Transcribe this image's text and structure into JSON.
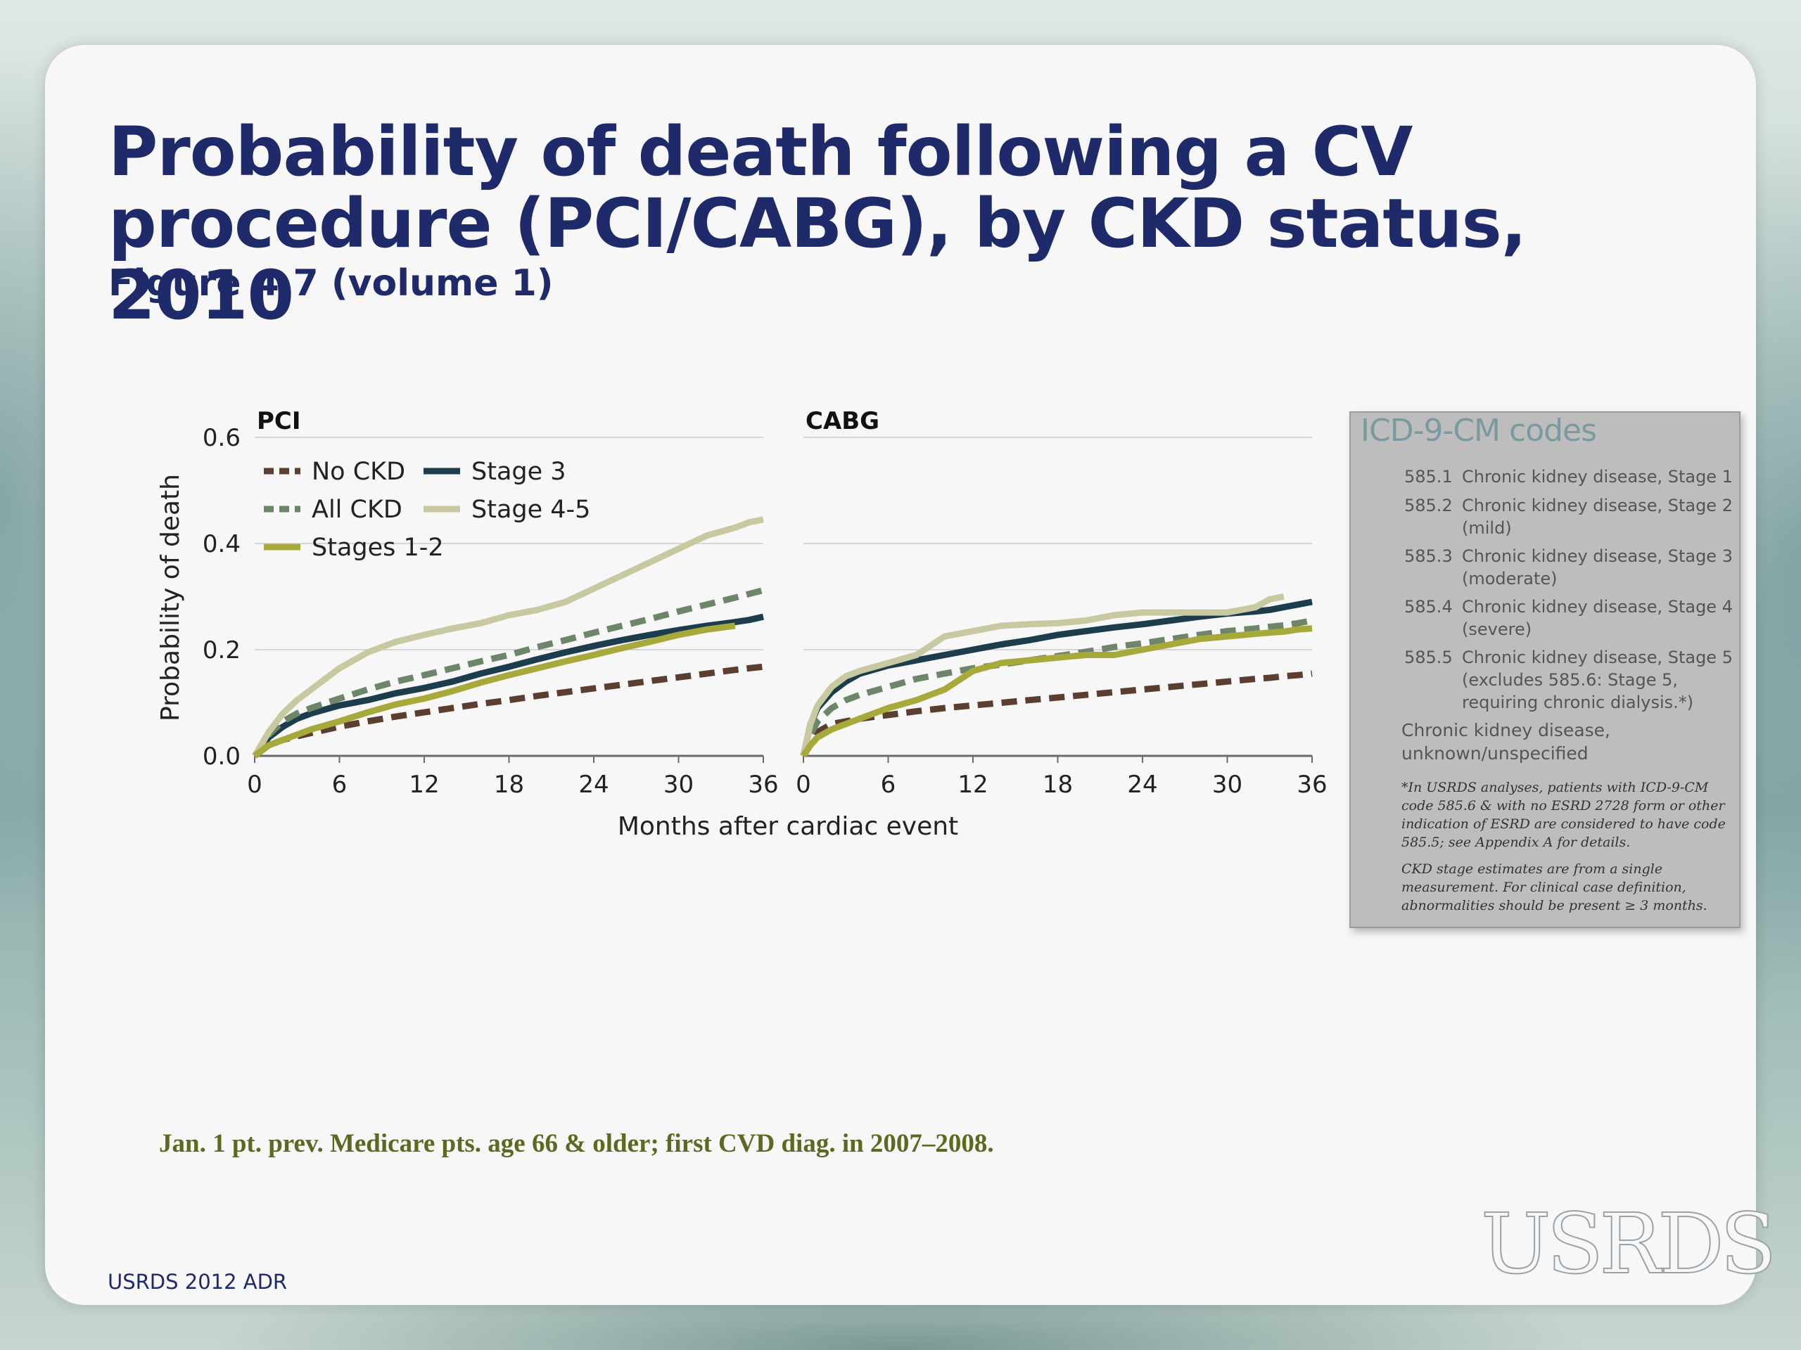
{
  "slide": {
    "title": "Probability of death following a CV procedure (PCI/CABG), by CKD status, 2010",
    "subtitle": "Figure 4.7 (volume 1)",
    "footnote": "Jan. 1 pt. prev. Medicare pts. age 66 & older;  first CVD diag. in 2007–2008.",
    "source": "USRDS 2012 ADR",
    "logo": "USRDS"
  },
  "colors": {
    "title": "#1f2a6b",
    "footnote": "#5a6b21",
    "No CKD": "#5b3e2f",
    "All CKD": "#6d8669",
    "Stages 1-2": "#a7a93a",
    "Stage 3": "#1c3d4d",
    "Stage 4-5": "#c8c9a0"
  },
  "icd": {
    "title": "ICD-9-CM codes",
    "items": [
      {
        "code": "585.1",
        "desc": "Chronic kidney disease, Stage 1"
      },
      {
        "code": "585.2",
        "desc": "Chronic kidney disease, Stage 2 (mild)"
      },
      {
        "code": "585.3",
        "desc": "Chronic kidney disease, Stage 3 (moderate)"
      },
      {
        "code": "585.4",
        "desc": "Chronic kidney disease, Stage 4 (severe)"
      },
      {
        "code": "585.5",
        "desc": "Chronic kidney disease, Stage 5 (excludes 585.6: Stage 5, requiring chronic dialysis.*)"
      }
    ],
    "unknown": "Chronic kidney disease, unknown/unspecified",
    "note1": "*In USRDS analyses, patients with ICD-9-CM code 585.6 & with no ESRD 2728 form or other indication of ESRD are considered to have code 585.5; see Appendix A for details.",
    "note2": "CKD stage estimates are from a single measurement. For clinical case definition, abnormalities should be present ≥ 3 months."
  },
  "chart_data": [
    {
      "type": "line",
      "title": "PCI",
      "xlabel": "Months after cardiac event",
      "ylabel": "Probability of death",
      "xlim": [
        0,
        36
      ],
      "ylim": [
        0,
        0.6
      ],
      "xticks": [
        "0",
        "6",
        "12",
        "18",
        "24",
        "30",
        "36"
      ],
      "yticks": [
        "0.0",
        "0.2",
        "0.4",
        "0.6"
      ],
      "grid": "horizontal",
      "legend": "top-left",
      "x": [
        0,
        1,
        2,
        3,
        4,
        6,
        8,
        10,
        12,
        14,
        16,
        18,
        20,
        22,
        24,
        26,
        28,
        30,
        32,
        34,
        35,
        36
      ],
      "series": [
        {
          "name": "No CKD",
          "dash": true,
          "values": [
            0,
            0.02,
            0.03,
            0.037,
            0.043,
            0.055,
            0.065,
            0.074,
            0.082,
            0.09,
            0.098,
            0.105,
            0.113,
            0.12,
            0.127,
            0.134,
            0.141,
            0.148,
            0.155,
            0.162,
            0.165,
            0.168
          ]
        },
        {
          "name": "Stage 3",
          "dash": false,
          "values": [
            0,
            0.035,
            0.055,
            0.07,
            0.08,
            0.095,
            0.105,
            0.118,
            0.128,
            0.14,
            0.155,
            0.168,
            0.182,
            0.195,
            0.207,
            0.218,
            0.228,
            0.237,
            0.245,
            0.252,
            0.256,
            0.262
          ]
        },
        {
          "name": "All CKD",
          "dash": true,
          "values": [
            0,
            0.04,
            0.065,
            0.08,
            0.09,
            0.108,
            0.125,
            0.14,
            0.152,
            0.165,
            0.178,
            0.19,
            0.205,
            0.218,
            0.232,
            0.245,
            0.258,
            0.272,
            0.285,
            0.298,
            0.305,
            0.312
          ]
        },
        {
          "name": "Stage 4-5",
          "dash": false,
          "values": [
            0,
            0.045,
            0.08,
            0.105,
            0.125,
            0.165,
            0.195,
            0.215,
            0.228,
            0.24,
            0.25,
            0.265,
            0.275,
            0.29,
            0.315,
            0.34,
            0.365,
            0.39,
            0.415,
            0.43,
            0.44,
            0.445
          ]
        },
        {
          "name": "Stages 1-2",
          "dash": false,
          "values": [
            0,
            0.02,
            0.03,
            0.04,
            0.05,
            0.065,
            0.082,
            0.097,
            0.108,
            0.122,
            0.138,
            0.152,
            0.165,
            0.178,
            0.19,
            0.203,
            0.215,
            0.228,
            0.238,
            0.245,
            null,
            null
          ]
        }
      ]
    },
    {
      "type": "line",
      "title": "CABG",
      "xlabel": "Months after cardiac event",
      "ylabel": "",
      "xlim": [
        0,
        36
      ],
      "ylim": [
        0,
        0.6
      ],
      "xticks": [
        "0",
        "6",
        "12",
        "18",
        "24",
        "30",
        "36"
      ],
      "yticks": [],
      "grid": "horizontal",
      "x": [
        0,
        0.5,
        1,
        2,
        3,
        4,
        6,
        8,
        10,
        12,
        14,
        16,
        18,
        20,
        22,
        24,
        26,
        28,
        30,
        32,
        33,
        34,
        35,
        36
      ],
      "series": [
        {
          "name": "No CKD",
          "dash": true,
          "values": [
            0,
            0.025,
            0.045,
            0.06,
            0.065,
            0.07,
            0.077,
            0.084,
            0.09,
            0.095,
            0.1,
            0.105,
            0.11,
            0.115,
            0.12,
            0.125,
            0.13,
            0.135,
            0.14,
            0.145,
            0.147,
            0.15,
            0.152,
            0.155
          ]
        },
        {
          "name": "Stage 3",
          "dash": false,
          "values": [
            0,
            0.06,
            0.09,
            0.12,
            0.14,
            0.155,
            0.17,
            0.18,
            0.19,
            0.2,
            0.21,
            0.218,
            0.228,
            0.235,
            0.242,
            0.248,
            0.255,
            0.262,
            0.268,
            0.272,
            0.275,
            0.28,
            0.285,
            0.29
          ]
        },
        {
          "name": "All CKD",
          "dash": true,
          "values": [
            0,
            0.04,
            0.065,
            0.09,
            0.105,
            0.115,
            0.13,
            0.145,
            0.155,
            0.165,
            0.172,
            0.18,
            0.188,
            0.196,
            0.205,
            0.212,
            0.22,
            0.228,
            0.235,
            0.24,
            0.243,
            0.246,
            0.25,
            0.255
          ]
        },
        {
          "name": "Stage 4-5",
          "dash": false,
          "values": [
            0,
            0.06,
            0.095,
            0.13,
            0.15,
            0.16,
            0.175,
            0.19,
            0.225,
            0.235,
            0.245,
            0.248,
            0.25,
            0.255,
            0.265,
            0.27,
            0.27,
            0.27,
            0.27,
            0.28,
            0.295,
            0.3,
            null,
            null
          ]
        },
        {
          "name": "Stages 1-2",
          "dash": false,
          "values": [
            0,
            0.02,
            0.035,
            0.05,
            0.06,
            0.07,
            0.09,
            0.105,
            0.125,
            0.16,
            0.175,
            0.18,
            0.185,
            0.19,
            0.19,
            0.2,
            0.21,
            0.22,
            0.225,
            0.23,
            0.232,
            0.234,
            0.238,
            0.24
          ]
        }
      ]
    }
  ]
}
